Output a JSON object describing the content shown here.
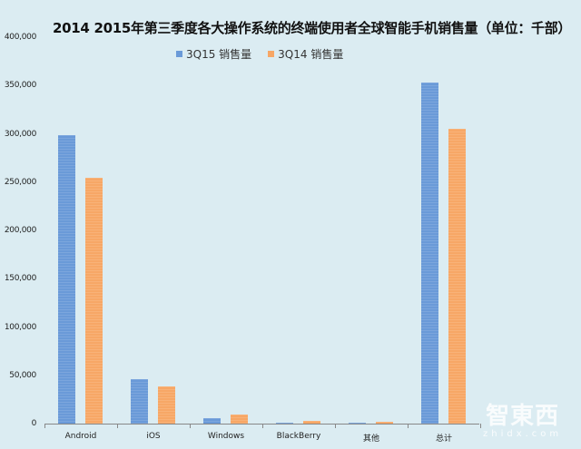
{
  "chart_data": {
    "type": "bar",
    "title": "2014 2015年第三季度各大操作系统的终端使用者全球智能手机销售量（单位：千部）",
    "xlabel": "",
    "ylabel": "",
    "categories": [
      "Android",
      "iOS",
      "Windows",
      "BlackBerry",
      "其他",
      "总计"
    ],
    "series": [
      {
        "name": "3Q15 销售量",
        "color": "#6a9ad8",
        "values": [
          298797,
          46062,
          5874,
          977,
          1002,
          352711
        ]
      },
      {
        "name": "3Q14 销售量",
        "color": "#f7a766",
        "values": [
          254354,
          38187,
          9033,
          2420,
          1558,
          305552
        ]
      }
    ],
    "ylim": [
      0,
      400000
    ],
    "yticks": [
      "0",
      "50,000",
      "100,000",
      "150,000",
      "200,000",
      "250,000",
      "300,000",
      "350,000",
      "400,000"
    ],
    "grid": false,
    "legend_position": "top"
  },
  "watermark": {
    "cn": "智東西",
    "en": "zhidx.com"
  }
}
